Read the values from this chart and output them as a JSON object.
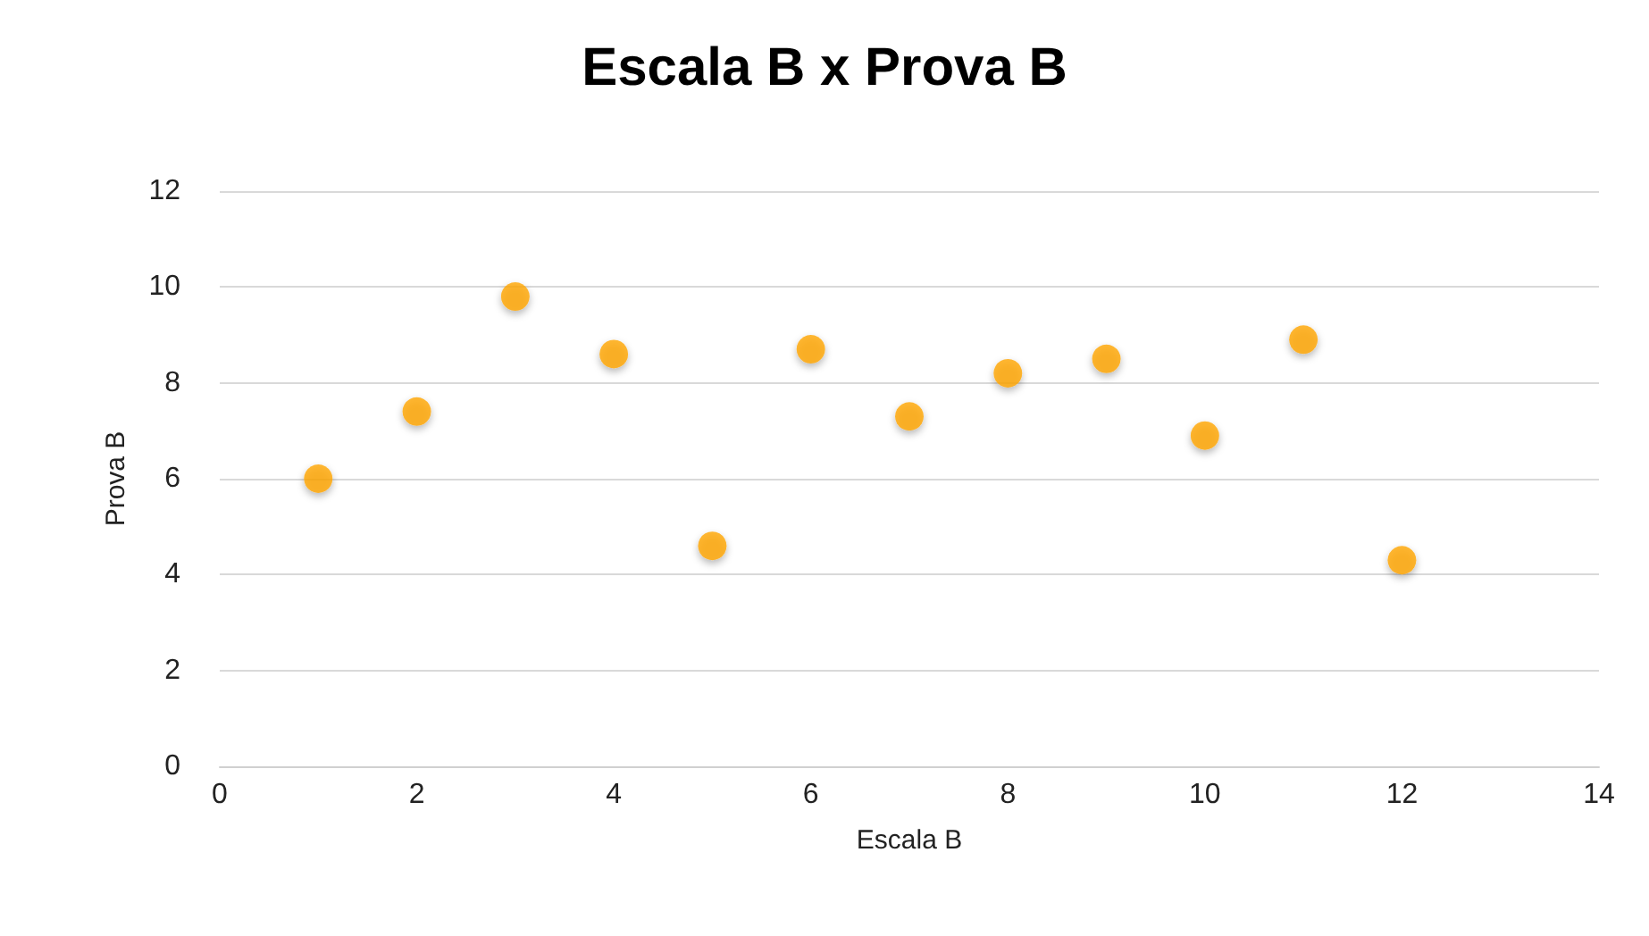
{
  "chart_data": {
    "type": "scatter",
    "title": "Escala B x Prova B",
    "xlabel": "Escala B",
    "ylabel": "Prova B",
    "x": [
      1,
      2,
      3,
      4,
      5,
      6,
      7,
      8,
      9,
      10,
      11,
      12
    ],
    "series": [
      {
        "color": "#ffa500",
        "values": [
          6.0,
          7.4,
          9.8,
          8.6,
          4.6,
          8.7,
          7.3,
          8.2,
          8.5,
          6.9,
          8.9,
          4.3
        ]
      }
    ],
    "xlim": [
      0,
      14
    ],
    "xticks": [
      0,
      2,
      4,
      6,
      8,
      10,
      12,
      14
    ],
    "ylim": [
      0,
      12
    ],
    "yticks": [
      0,
      2,
      4,
      6,
      8,
      10,
      12
    ],
    "grid": "y",
    "marker": "circle"
  }
}
